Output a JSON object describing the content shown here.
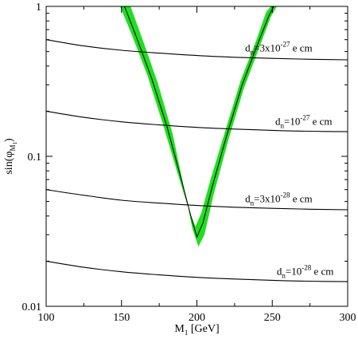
{
  "chart_data": {
    "type": "line",
    "xlabel": {
      "main": "M",
      "sub": "1",
      "unit": " [GeV]"
    },
    "ylabel": {
      "main": "sin(φ",
      "sub": "M",
      "subsub": "1",
      "close": ")"
    },
    "xlim": [
      100,
      300
    ],
    "ylim": [
      0.01,
      1
    ],
    "yscale": "log",
    "xticks": [
      100,
      150,
      200,
      250,
      300
    ],
    "xtick_labels": [
      "100",
      "150",
      "200",
      "250",
      "300"
    ],
    "yticks": [
      0.01,
      0.1,
      1
    ],
    "ytick_labels": [
      "0.01",
      "0.1",
      "1"
    ],
    "grid": false,
    "band": {
      "color": "#22dd22",
      "center": [
        [
          152,
          1.0
        ],
        [
          160,
          0.62
        ],
        [
          170,
          0.33
        ],
        [
          180,
          0.16
        ],
        [
          190,
          0.068
        ],
        [
          196,
          0.04
        ],
        [
          200,
          0.029
        ],
        [
          204,
          0.036
        ],
        [
          210,
          0.062
        ],
        [
          220,
          0.14
        ],
        [
          230,
          0.3
        ],
        [
          240,
          0.55
        ],
        [
          248,
          0.88
        ],
        [
          251,
          1.0
        ]
      ],
      "lower": [
        [
          156,
          1.0
        ],
        [
          164,
          0.6
        ],
        [
          174,
          0.31
        ],
        [
          184,
          0.14
        ],
        [
          192,
          0.058
        ],
        [
          197,
          0.033
        ],
        [
          201,
          0.025
        ],
        [
          205,
          0.03
        ],
        [
          211,
          0.055
        ],
        [
          221,
          0.13
        ],
        [
          231,
          0.28
        ],
        [
          241,
          0.52
        ],
        [
          249,
          0.85
        ],
        [
          253,
          1.0
        ]
      ],
      "upper": [
        [
          149,
          1.0
        ],
        [
          157,
          0.64
        ],
        [
          167,
          0.35
        ],
        [
          177,
          0.17
        ],
        [
          187,
          0.078
        ],
        [
          194,
          0.046
        ],
        [
          199,
          0.034
        ],
        [
          203,
          0.042
        ],
        [
          209,
          0.07
        ],
        [
          219,
          0.15
        ],
        [
          229,
          0.32
        ],
        [
          239,
          0.58
        ],
        [
          246,
          0.92
        ],
        [
          249,
          1.0
        ]
      ]
    },
    "series": [
      {
        "values": [
          [
            100,
            0.6
          ],
          [
            125,
            0.545
          ],
          [
            150,
            0.51
          ],
          [
            175,
            0.488
          ],
          [
            200,
            0.47
          ],
          [
            225,
            0.458
          ],
          [
            250,
            0.45
          ],
          [
            275,
            0.444
          ],
          [
            300,
            0.44
          ]
        ]
      },
      {
        "values": [
          [
            100,
            0.2
          ],
          [
            125,
            0.182
          ],
          [
            150,
            0.17
          ],
          [
            175,
            0.162
          ],
          [
            200,
            0.156
          ],
          [
            225,
            0.152
          ],
          [
            250,
            0.149
          ],
          [
            275,
            0.147
          ],
          [
            300,
            0.146
          ]
        ]
      },
      {
        "values": [
          [
            100,
            0.06
          ],
          [
            125,
            0.055
          ],
          [
            150,
            0.051
          ],
          [
            175,
            0.0488
          ],
          [
            200,
            0.047
          ],
          [
            225,
            0.0458
          ],
          [
            250,
            0.045
          ],
          [
            275,
            0.0444
          ],
          [
            300,
            0.044
          ]
        ]
      },
      {
        "values": [
          [
            100,
            0.02
          ],
          [
            125,
            0.0182
          ],
          [
            150,
            0.017
          ],
          [
            175,
            0.0162
          ],
          [
            200,
            0.0156
          ],
          [
            225,
            0.0152
          ],
          [
            250,
            0.0149
          ],
          [
            275,
            0.0147
          ],
          [
            300,
            0.0146
          ]
        ]
      }
    ],
    "annotations": [
      {
        "base": "d",
        "sub": "n",
        "eq": "=3x10",
        "sup": "-27",
        "unit": " e cm",
        "x": 232,
        "y": 0.5
      },
      {
        "base": "d",
        "sub": "n",
        "eq": "=10",
        "sup": "-27",
        "unit": " e cm",
        "x": 252,
        "y": 0.162
      },
      {
        "base": "d",
        "sub": "n",
        "eq": "=3x10",
        "sup": "-28",
        "unit": " e cm",
        "x": 232,
        "y": 0.0495
      },
      {
        "base": "d",
        "sub": "n",
        "eq": "=10",
        "sup": "-28",
        "unit": " e cm",
        "x": 253,
        "y": 0.0162
      }
    ]
  }
}
